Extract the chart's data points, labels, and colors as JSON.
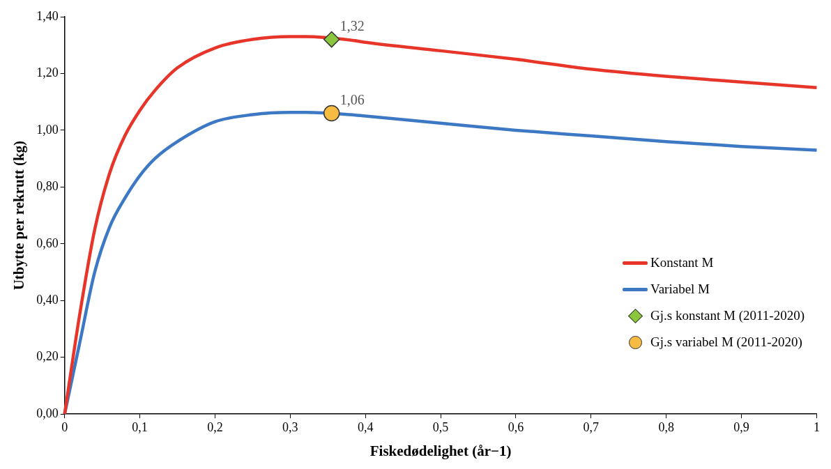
{
  "chart_data": {
    "type": "line",
    "xlabel": "Fiskedødelighet (år−1)",
    "ylabel": "Utbytte per rekrutt (kg)",
    "xlim": [
      0,
      1
    ],
    "xticks": [
      0,
      {
        "value": 0.1,
        "label": "0,1"
      },
      {
        "value": 0.2,
        "label": "0,2"
      },
      {
        "value": 0.3,
        "label": "0,3"
      },
      {
        "value": 0.4,
        "label": "0,4"
      },
      {
        "value": 0.5,
        "label": "0,5"
      },
      {
        "value": 0.6,
        "label": "0,6"
      },
      {
        "value": 0.7,
        "label": "0,7"
      },
      {
        "value": 0.8,
        "label": "0,8"
      },
      {
        "value": 0.9,
        "label": "0,9"
      },
      1
    ],
    "ylim": [
      0,
      1.4
    ],
    "yticks": [
      {
        "value": 0,
        "label": "0,00"
      },
      {
        "value": 0.2,
        "label": "0,20"
      },
      {
        "value": 0.4,
        "label": "0,40"
      },
      {
        "value": 0.6,
        "label": "0,60"
      },
      {
        "value": 0.8,
        "label": "0,80"
      },
      {
        "value": 1,
        "label": "1,00"
      },
      {
        "value": 1.2,
        "label": "1,20"
      },
      {
        "value": 1.4,
        "label": "1,40"
      }
    ],
    "grid": false,
    "legend": "right",
    "line_style": "solid",
    "x": [
      0,
      0.02,
      0.04,
      0.06,
      0.08,
      0.1,
      0.12,
      0.15,
      0.2,
      0.25,
      0.3,
      0.32,
      0.38,
      0.4,
      0.5,
      0.6,
      0.7,
      0.8,
      0.9,
      1.0
    ],
    "series": [
      {
        "name": "Konstant M",
        "marker": "none",
        "color": "#e8352a",
        "values": [
          0,
          0.35,
          0.65,
          0.85,
          0.98,
          1.07,
          1.14,
          1.22,
          1.29,
          1.32,
          1.33,
          1.33,
          1.318,
          1.31,
          1.28,
          1.25,
          1.215,
          1.19,
          1.17,
          1.15
        ]
      },
      {
        "name": "Variabel M",
        "marker": "none",
        "color": "#3c78c3",
        "values": [
          0,
          0.25,
          0.5,
          0.66,
          0.76,
          0.84,
          0.9,
          0.96,
          1.03,
          1.055,
          1.063,
          1.063,
          1.055,
          1.05,
          1.025,
          1.0,
          0.98,
          0.96,
          0.943,
          0.93
        ]
      },
      {
        "name": "Gj.s konstant M (2011-2020)",
        "type": "scatter",
        "marker": "diamond",
        "color": "#8cc63f",
        "x": [
          0.355
        ],
        "values": [
          1.32
        ],
        "value_labels": [
          "1,32"
        ]
      },
      {
        "name": "Gj.s variabel M (2011-2020)",
        "type": "scatter",
        "marker": "circle",
        "color": "#f6bb42",
        "x": [
          0.355
        ],
        "values": [
          1.06
        ],
        "value_labels": [
          "1,06"
        ]
      }
    ]
  }
}
